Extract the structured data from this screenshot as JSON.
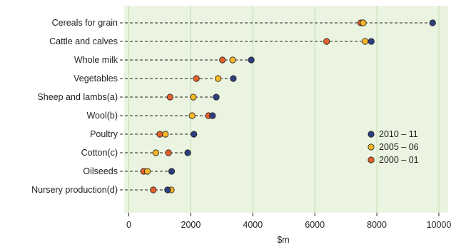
{
  "chart_data": {
    "type": "scatter",
    "subtype": "dot-plot",
    "categories": [
      "Cereals for grain",
      "Cattle and calves",
      "Whole milk",
      "Vegetables",
      "Sheep and lambs(a)",
      "Wool(b)",
      "Poultry",
      "Cotton(c)",
      "Oilseeds",
      "Nursery production(d)"
    ],
    "series": [
      {
        "name": "2010 – 11",
        "color": "#2e3f7f",
        "values": [
          9800,
          7820,
          3950,
          3370,
          2820,
          2700,
          2100,
          1900,
          1380,
          1250
        ]
      },
      {
        "name": "2005 – 06",
        "color": "#f5b726",
        "values": [
          7560,
          7620,
          3350,
          2880,
          2080,
          2040,
          1180,
          870,
          600,
          1370
        ]
      },
      {
        "name": "2000 – 01",
        "color": "#e2622b",
        "values": [
          7480,
          6380,
          3020,
          2180,
          1330,
          2570,
          1000,
          1280,
          480,
          790
        ]
      }
    ],
    "xlabel": "$m",
    "xlim": [
      -150,
      10300
    ],
    "xticks": [
      0,
      2000,
      4000,
      6000,
      8000,
      10000
    ],
    "grid": true,
    "legend_position": "right"
  }
}
